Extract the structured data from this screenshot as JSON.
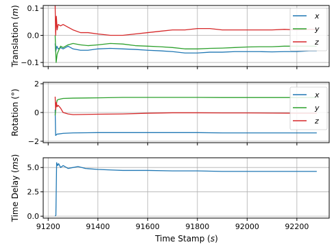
{
  "figure": {
    "xlabel": "Time Stamp (s)"
  },
  "chart_data": [
    {
      "type": "line",
      "ylabel": "Translation (m)",
      "xlim": [
        91180,
        92330
      ],
      "ylim": [
        -0.115,
        0.11
      ],
      "xticks": [
        91200,
        91400,
        91600,
        91800,
        92000,
        92200
      ],
      "yticks": [
        -0.1,
        0.0,
        0.1
      ],
      "ytick_labels": [
        "−0.1",
        "0.0",
        "0.1"
      ],
      "grid": true,
      "legend": "top-right",
      "series": [
        {
          "name": "x",
          "color": "#1f77b4",
          "x": [
            91228,
            91230,
            91235,
            91240,
            91250,
            91260,
            91280,
            91300,
            91330,
            91360,
            91400,
            91450,
            91500,
            91550,
            91600,
            91650,
            91700,
            91750,
            91800,
            91850,
            91900,
            91950,
            92000,
            92050,
            92100,
            92150,
            92200,
            92250,
            92280
          ],
          "y": [
            -0.03,
            -0.06,
            -0.04,
            -0.05,
            -0.045,
            -0.05,
            -0.04,
            -0.05,
            -0.055,
            -0.055,
            -0.05,
            -0.048,
            -0.05,
            -0.052,
            -0.055,
            -0.057,
            -0.06,
            -0.065,
            -0.065,
            -0.062,
            -0.062,
            -0.06,
            -0.06,
            -0.06,
            -0.061,
            -0.06,
            -0.06,
            -0.057,
            -0.057
          ]
        },
        {
          "name": "y",
          "color": "#2ca02c",
          "x": [
            91228,
            91232,
            91236,
            91240,
            91250,
            91260,
            91280,
            91300,
            91330,
            91360,
            91400,
            91450,
            91500,
            91550,
            91600,
            91650,
            91700,
            91750,
            91800,
            91850,
            91900,
            91950,
            92000,
            92050,
            92100,
            92150,
            92200,
            92250,
            92280
          ],
          "y": [
            0.0,
            -0.1,
            -0.07,
            -0.06,
            -0.04,
            -0.045,
            -0.035,
            -0.03,
            -0.035,
            -0.038,
            -0.035,
            -0.03,
            -0.032,
            -0.038,
            -0.04,
            -0.042,
            -0.045,
            -0.05,
            -0.05,
            -0.048,
            -0.047,
            -0.045,
            -0.043,
            -0.042,
            -0.042,
            -0.04,
            -0.04,
            -0.04,
            -0.04
          ]
        },
        {
          "name": "z",
          "color": "#d62728",
          "x": [
            91228,
            91230,
            91233,
            91236,
            91240,
            91250,
            91260,
            91280,
            91300,
            91330,
            91360,
            91400,
            91450,
            91500,
            91550,
            91600,
            91650,
            91700,
            91750,
            91800,
            91850,
            91900,
            91950,
            92000,
            92050,
            92100,
            92150,
            92200,
            92250,
            92280
          ],
          "y": [
            0.11,
            0.0,
            0.07,
            0.02,
            0.04,
            0.035,
            0.04,
            0.03,
            0.02,
            0.01,
            0.01,
            0.005,
            0.0,
            0.0,
            0.005,
            0.01,
            0.015,
            0.02,
            0.02,
            0.025,
            0.025,
            0.02,
            0.02,
            0.02,
            0.02,
            0.02,
            0.022,
            0.02,
            0.022,
            0.022
          ]
        }
      ]
    },
    {
      "type": "line",
      "ylabel": "Rotation (°)",
      "xlim": [
        91180,
        92330
      ],
      "ylim": [
        -2.1,
        2.1
      ],
      "xticks": [
        91200,
        91400,
        91600,
        91800,
        92000,
        92200
      ],
      "yticks": [
        -2,
        0,
        2
      ],
      "ytick_labels": [
        "−2",
        "0",
        "2"
      ],
      "grid": true,
      "legend": "top-right",
      "series": [
        {
          "name": "x",
          "color": "#1f77b4",
          "x": [
            91228,
            91230,
            91236,
            91240,
            91260,
            91300,
            91400,
            91500,
            91600,
            91700,
            91800,
            91900,
            92000,
            92100,
            92200,
            92280
          ],
          "y": [
            0.2,
            -1.6,
            -1.5,
            -1.5,
            -1.45,
            -1.42,
            -1.4,
            -1.4,
            -1.4,
            -1.4,
            -1.4,
            -1.42,
            -1.42,
            -1.42,
            -1.42,
            -1.42
          ]
        },
        {
          "name": "y",
          "color": "#2ca02c",
          "x": [
            91228,
            91232,
            91236,
            91240,
            91260,
            91300,
            91400,
            91500,
            91600,
            91700,
            91800,
            91900,
            92000,
            92100,
            92200,
            92280
          ],
          "y": [
            -0.2,
            0.5,
            0.85,
            0.9,
            0.98,
            1.0,
            1.02,
            1.05,
            1.05,
            1.05,
            1.05,
            1.04,
            1.04,
            1.04,
            1.04,
            1.04
          ]
        },
        {
          "name": "z",
          "color": "#d62728",
          "x": [
            91228,
            91230,
            91233,
            91236,
            91240,
            91250,
            91260,
            91280,
            91300,
            91400,
            91500,
            91600,
            91700,
            91800,
            91900,
            92000,
            92100,
            92200,
            92280
          ],
          "y": [
            1.1,
            0.2,
            0.7,
            0.4,
            0.5,
            0.3,
            0.0,
            -0.1,
            -0.15,
            -0.12,
            -0.1,
            -0.05,
            -0.02,
            -0.02,
            -0.03,
            -0.03,
            -0.04,
            -0.05,
            -0.05
          ]
        }
      ]
    },
    {
      "type": "line",
      "ylabel": "Time Delay (ms)",
      "xlim": [
        91180,
        92330
      ],
      "ylim": [
        -0.2,
        6.0
      ],
      "xticks": [
        91200,
        91400,
        91600,
        91800,
        92000,
        92200
      ],
      "yticks": [
        0.0,
        2.5,
        5.0
      ],
      "ytick_labels": [
        "0.0",
        "2.5",
        "5.0"
      ],
      "grid": true,
      "legend": "none",
      "series": [
        {
          "color": "#1f77b4",
          "x": [
            91228,
            91231,
            91234,
            91238,
            91242,
            91250,
            91260,
            91280,
            91300,
            91320,
            91350,
            91400,
            91450,
            91500,
            91600,
            91700,
            91800,
            91900,
            92000,
            92100,
            92200,
            92280
          ],
          "y": [
            0.0,
            0.1,
            5.5,
            5.2,
            5.4,
            5.0,
            5.2,
            4.9,
            5.0,
            5.1,
            4.9,
            4.8,
            4.75,
            4.7,
            4.7,
            4.65,
            4.65,
            4.6,
            4.6,
            4.6,
            4.6,
            4.6
          ]
        }
      ]
    }
  ]
}
